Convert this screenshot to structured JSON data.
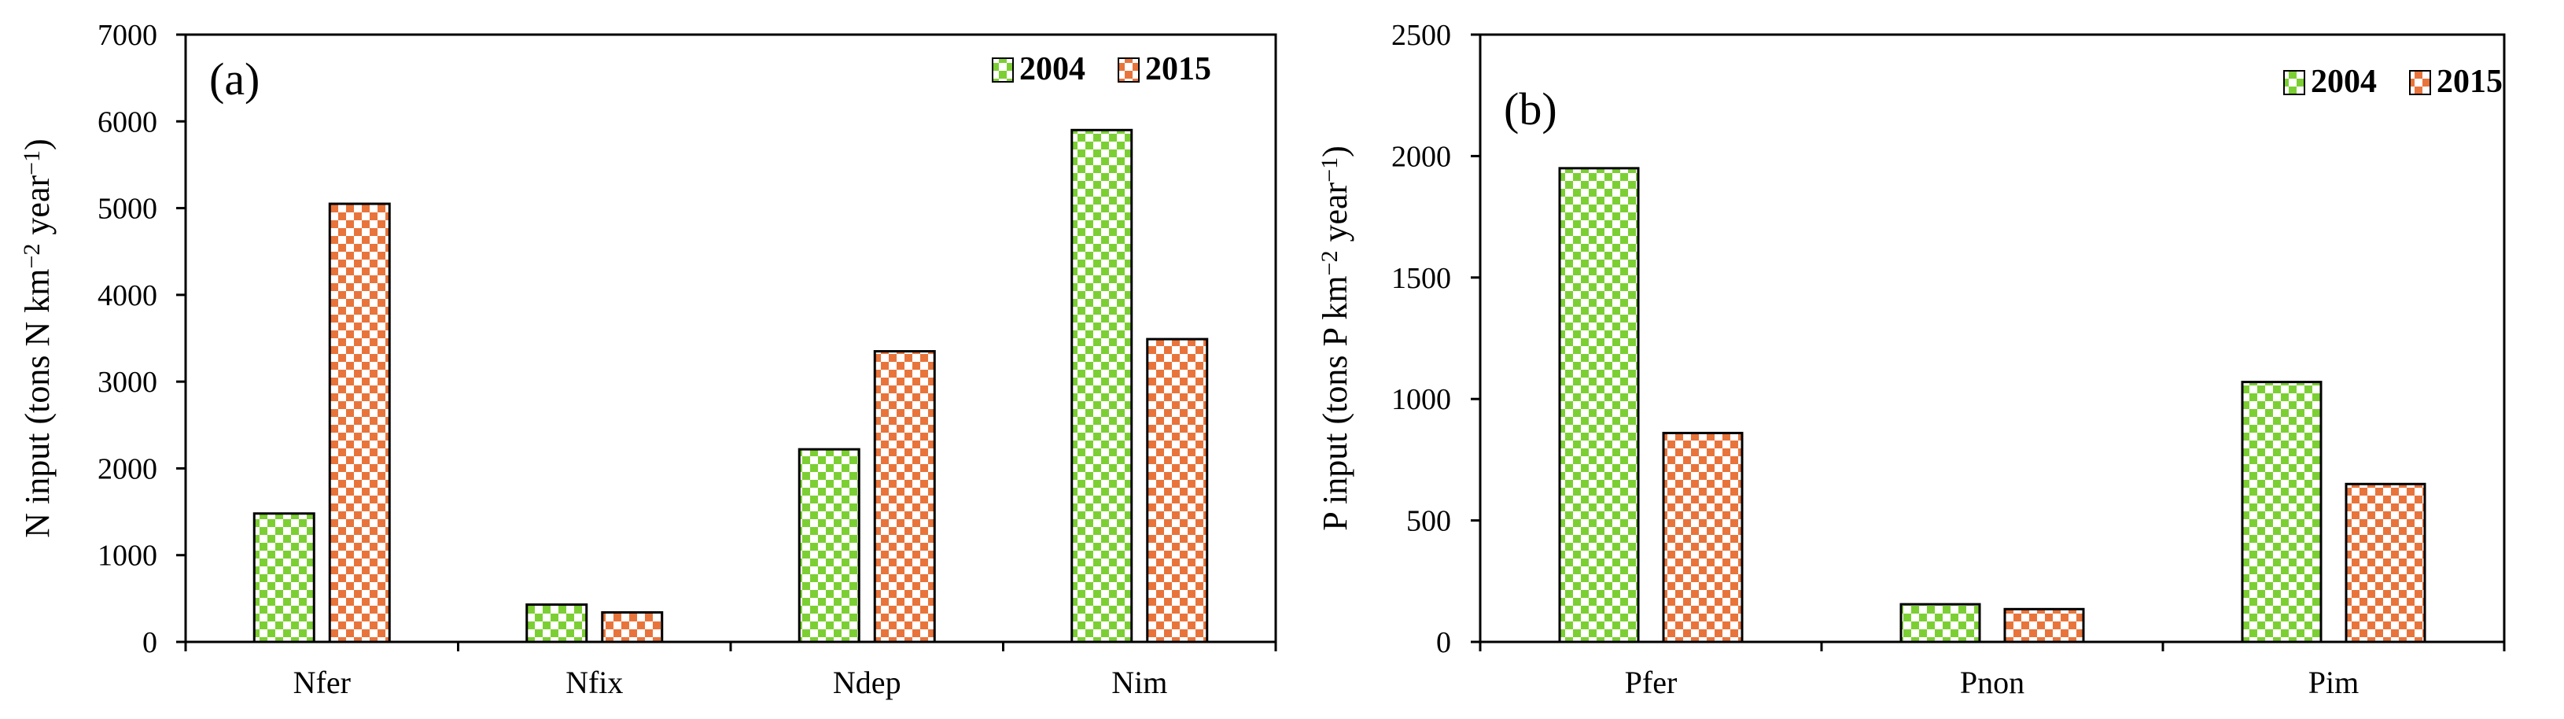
{
  "colors": {
    "series_2004": "#7ccf33",
    "series_2015": "#e8743b",
    "axis": "#000000",
    "background": "#ffffff"
  },
  "chart_data": [
    {
      "type": "bar",
      "panel_label": "(a)",
      "title": "",
      "xlabel": "",
      "ylabel": "N input  (tons N km",
      "ylabel_sup1": "−2",
      "ylabel_mid": " year",
      "ylabel_sup2": "−1",
      "ylabel_end": ")",
      "ylim": [
        0,
        7000
      ],
      "yticks": [
        0,
        1000,
        2000,
        3000,
        4000,
        5000,
        6000,
        7000
      ],
      "grid": false,
      "legend_position": "top-right",
      "categories": [
        "Nfer",
        "Nfix",
        "Ndep",
        "Nim"
      ],
      "series": [
        {
          "name": "2004",
          "values": [
            1480,
            430,
            2220,
            5900
          ]
        },
        {
          "name": "2015",
          "values": [
            5050,
            340,
            3350,
            3490
          ]
        }
      ]
    },
    {
      "type": "bar",
      "panel_label": "(b)",
      "title": "",
      "xlabel": "",
      "ylabel": "P input  (tons P km",
      "ylabel_sup1": "−2",
      "ylabel_mid": " year",
      "ylabel_sup2": "−1",
      "ylabel_end": ")",
      "ylim": [
        0,
        2500
      ],
      "yticks": [
        0,
        500,
        1000,
        1500,
        2000,
        2500
      ],
      "grid": false,
      "legend_position": "top-right",
      "categories": [
        "Pfer",
        "Pnon",
        "Pim"
      ],
      "series": [
        {
          "name": "2004",
          "values": [
            1950,
            155,
            1070
          ]
        },
        {
          "name": "2015",
          "values": [
            860,
            135,
            650
          ]
        }
      ]
    }
  ]
}
